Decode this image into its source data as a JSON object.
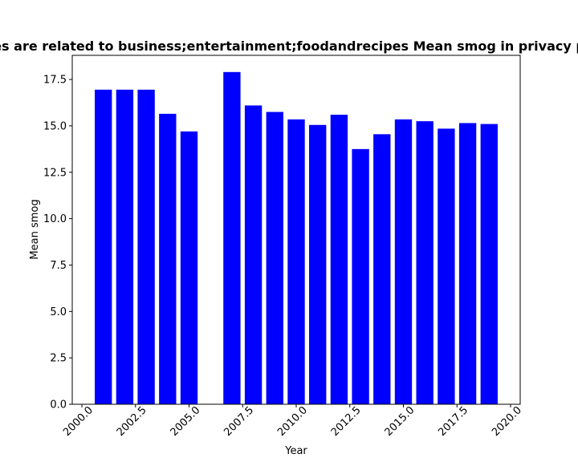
{
  "chart_data": {
    "type": "bar",
    "title": "es are related to business;entertainment;foodandrecipes Mean smog in privacy p",
    "xlabel": "Year",
    "ylabel": "Mean smog",
    "x": [
      2001,
      2002,
      2003,
      2004,
      2005,
      2007,
      2008,
      2009,
      2010,
      2011,
      2012,
      2013,
      2014,
      2015,
      2016,
      2017,
      2018,
      2019
    ],
    "values": [
      16.95,
      16.95,
      16.95,
      15.65,
      14.7,
      17.9,
      16.1,
      15.75,
      15.35,
      15.05,
      15.6,
      13.75,
      14.55,
      15.35,
      15.25,
      14.85,
      15.15,
      15.1
    ],
    "xlim": [
      1999.55,
      2020.45
    ],
    "ylim": [
      0,
      18.8
    ],
    "x_ticks": [
      "2000.0",
      "2002.5",
      "2005.0",
      "2007.5",
      "2010.0",
      "2012.5",
      "2015.0",
      "2017.5",
      "2020.0"
    ],
    "y_ticks": [
      "0.0",
      "2.5",
      "5.0",
      "7.5",
      "10.0",
      "12.5",
      "15.0",
      "17.5"
    ],
    "bar_color": "#0000ff",
    "grid": false
  }
}
